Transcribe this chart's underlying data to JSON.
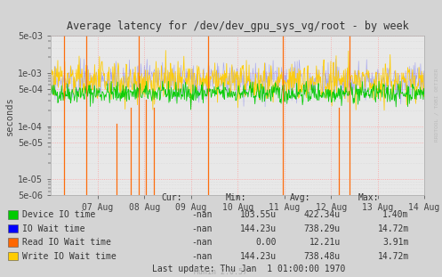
{
  "title": "Average latency for /dev/dev_gpu_sys_vg/root - by week",
  "ylabel": "seconds",
  "watermark": "Munin 2.0.57",
  "rrdtool_label": "RRDTOOL / TOBI OETIKER",
  "background_color": "#d4d4d4",
  "plot_bg_color": "#e8e8e8",
  "grid_color_major": "#ff9999",
  "grid_color_minor": "#cccccc",
  "xlim_start": 1375660800,
  "xlim_end": 1376524800,
  "ylim_log_min": 5e-06,
  "ylim_log_max": 0.005,
  "xtick_labels": [
    "07 Aug",
    "08 Aug",
    "09 Aug",
    "10 Aug",
    "11 Aug",
    "12 Aug",
    "13 Aug",
    "14 Aug"
  ],
  "legend_entries": [
    {
      "label": "Device IO time",
      "color": "#00cc00"
    },
    {
      "label": "IO Wait time",
      "color": "#0000ff"
    },
    {
      "label": "Read IO Wait time",
      "color": "#ff6600"
    },
    {
      "label": "Write IO Wait time",
      "color": "#ffcc00"
    }
  ],
  "legend_cols": [
    {
      "header": "Cur:",
      "values": [
        "-nan",
        "-nan",
        "-nan",
        "-nan"
      ]
    },
    {
      "header": "Min:",
      "values": [
        "103.55u",
        "144.23u",
        "0.00",
        "144.23u"
      ]
    },
    {
      "header": "Avg:",
      "values": [
        "422.34u",
        "738.29u",
        "12.21u",
        "738.48u"
      ]
    },
    {
      "header": "Max:",
      "values": [
        "1.40m",
        "14.72m",
        "3.91m",
        "14.72m"
      ]
    }
  ],
  "last_update": "Last update: Thu Jan  1 01:00:00 1970",
  "seed": 42,
  "n_points": 700,
  "spike_fractions": [
    0.035,
    0.095,
    0.175,
    0.215,
    0.235,
    0.255,
    0.275,
    0.42,
    0.62,
    0.77,
    0.8
  ],
  "spike_heights": [
    1.0,
    1.0,
    0.45,
    0.55,
    1.0,
    0.6,
    0.55,
    1.0,
    1.0,
    0.55,
    1.0
  ]
}
